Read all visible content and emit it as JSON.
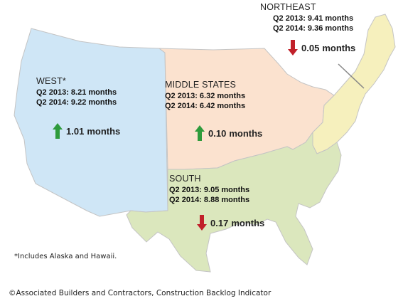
{
  "colors": {
    "west": "#cfe6f6",
    "middle_states": "#fbe2cf",
    "south": "#dbe7bd",
    "northeast": "#f6f0bd",
    "border": "#c4c4c4",
    "up_arrow": "#2e9b3c",
    "down_arrow": "#c1202a"
  },
  "regions": {
    "west": {
      "name": "WEST*",
      "q2_2013": "Q2 2013: 8.21 months",
      "q2_2014": "Q2 2014: 9.22 months",
      "change_direction": "up",
      "change_value": "1.01",
      "change_unit": "months"
    },
    "middle_states": {
      "name": "MIDDLE STATES",
      "q2_2013": "Q2 2013: 6.32 months",
      "q2_2014": "Q2 2014: 6.42 months",
      "change_direction": "up",
      "change_value": "0.10",
      "change_unit": "months"
    },
    "northeast": {
      "name": "NORTHEAST",
      "q2_2013": "Q2 2013: 9.41 months",
      "q2_2014": "Q2 2014: 9.36 months",
      "change_direction": "down",
      "change_value": "0.05",
      "change_unit": "months"
    },
    "south": {
      "name": "SOUTH",
      "q2_2013": "Q2 2013: 9.05 months",
      "q2_2014": "Q2 2014: 8.88 months",
      "change_direction": "down",
      "change_value": "0.17",
      "change_unit": "months"
    }
  },
  "footnote": "*Includes Alaska and Hawaii.",
  "copyright": "©Associated Builders and Contractors, Construction Backlog Indicator"
}
